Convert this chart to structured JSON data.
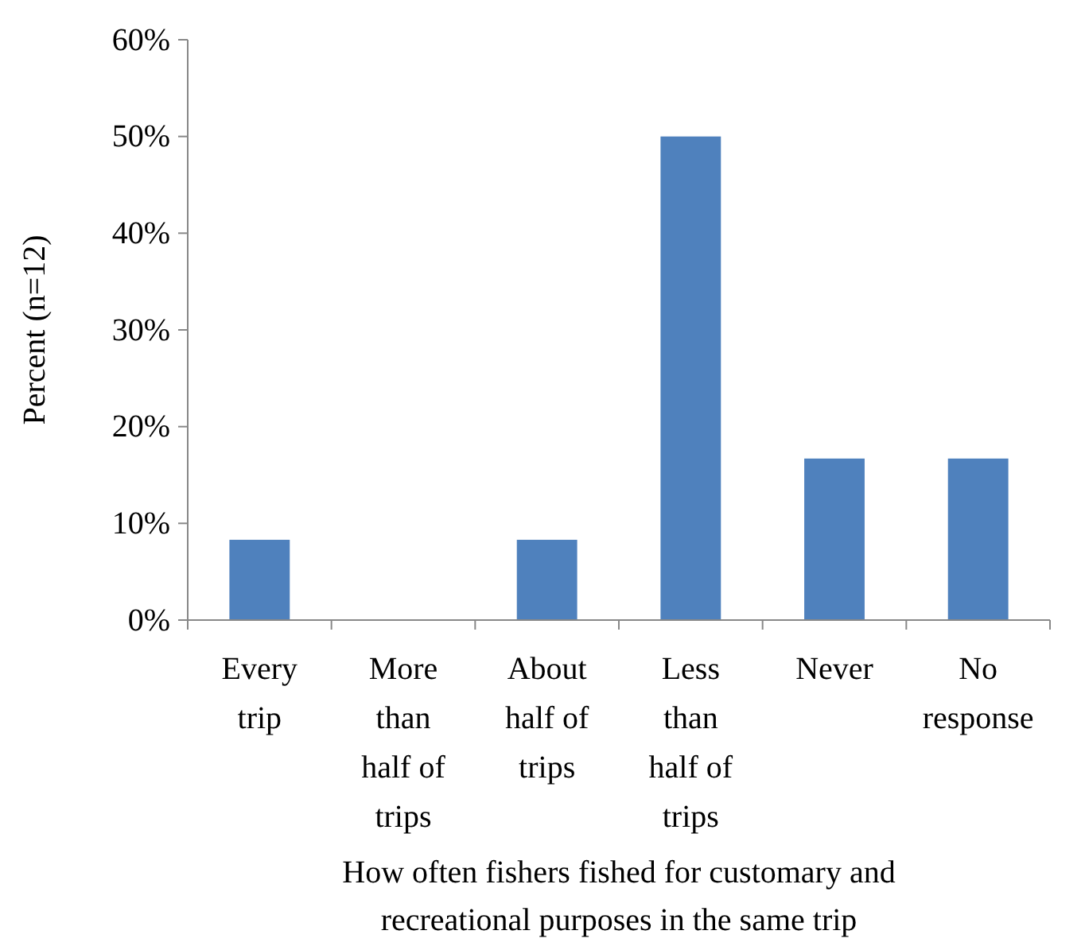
{
  "chart_data": {
    "type": "bar",
    "xlabel": "How often fishers fished for customary and recreational purposes in the same trip",
    "ylabel": "Percent (n=12)",
    "categories": [
      "Every trip",
      "More than half of trips",
      "About half of trips",
      "Less than half of trips",
      "Never",
      "No response"
    ],
    "values": [
      8.3,
      0,
      8.3,
      50,
      16.7,
      16.7
    ],
    "color": "#4f81bd",
    "ylim": [
      0,
      60
    ],
    "yticks": [
      {
        "value": 0,
        "label": "0%"
      },
      {
        "value": 10,
        "label": "10%"
      },
      {
        "value": 20,
        "label": "20%"
      },
      {
        "value": 30,
        "label": "30%"
      },
      {
        "value": 40,
        "label": "40%"
      },
      {
        "value": 50,
        "label": "50%"
      },
      {
        "value": 60,
        "label": "60%"
      }
    ],
    "grid": false
  }
}
